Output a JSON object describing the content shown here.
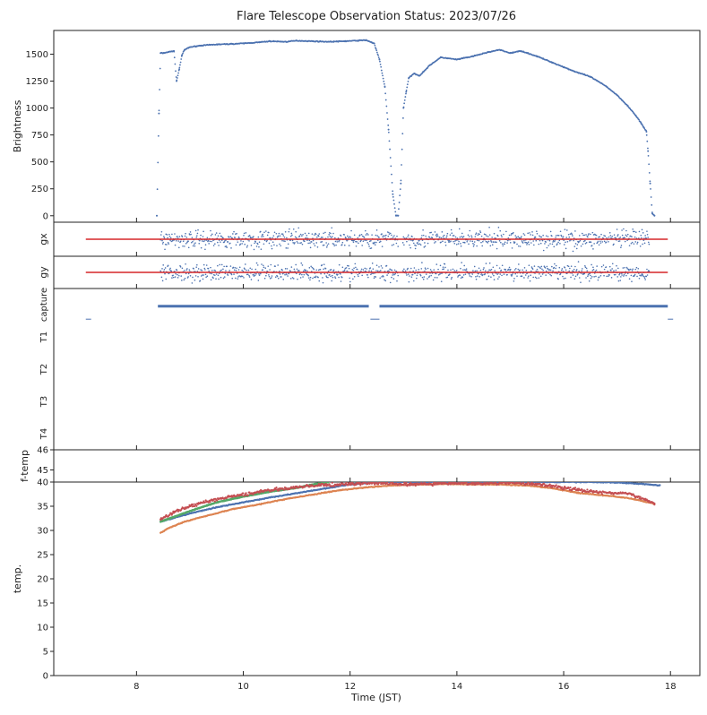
{
  "chart_data": {
    "type": "scatter",
    "title": "Flare Telescope Observation Status: 2023/07/26",
    "xlabel": "Time (JST)",
    "xlim": [
      6.45,
      18.55
    ],
    "xticks": [
      8,
      10,
      12,
      14,
      16,
      18
    ],
    "xtick_labels": [
      "8",
      "10",
      "12",
      "14",
      "16",
      "18"
    ],
    "colors": {
      "blue": "#4c72b0",
      "orange": "#dd8452",
      "green": "#55a868",
      "red": "#c44e52"
    },
    "panels": [
      {
        "name": "brightness",
        "ylabel": "Brightness",
        "ylim": [
          -60,
          1720
        ],
        "yticks": [
          0,
          250,
          500,
          750,
          1000,
          1250,
          1500
        ],
        "ytick_labels": [
          "0",
          "250",
          "500",
          "750",
          "1000",
          "1250",
          "1500"
        ],
        "series": [
          {
            "name": "brightness",
            "color": "#4c72b0",
            "x": [
              8.38,
              8.42,
              8.45,
              8.5,
              8.6,
              8.7,
              8.75,
              8.8,
              8.85,
              8.9,
              9.0,
              9.2,
              9.5,
              9.8,
              10.0,
              10.3,
              10.5,
              10.8,
              11.0,
              11.3,
              11.6,
              11.9,
              12.1,
              12.3,
              12.45,
              12.55,
              12.65,
              12.72,
              12.8,
              12.86,
              12.9,
              12.95,
              13.0,
              13.05,
              13.1,
              13.2,
              13.3,
              13.5,
              13.7,
              14.0,
              14.3,
              14.6,
              14.8,
              15.0,
              15.2,
              15.5,
              15.8,
              16.0,
              16.2,
              16.5,
              16.8,
              17.0,
              17.2,
              17.35,
              17.45,
              17.5,
              17.55,
              17.58,
              17.62,
              17.66,
              17.7
            ],
            "y": [
              0,
              950,
              1510,
              1510,
              1520,
              1530,
              1250,
              1360,
              1490,
              1540,
              1565,
              1580,
              1590,
              1595,
              1600,
              1610,
              1620,
              1615,
              1625,
              1620,
              1615,
              1620,
              1625,
              1630,
              1600,
              1450,
              1200,
              800,
              200,
              0,
              0,
              300,
              1000,
              1150,
              1280,
              1320,
              1300,
              1400,
              1470,
              1450,
              1480,
              1520,
              1540,
              1510,
              1530,
              1480,
              1420,
              1380,
              1340,
              1290,
              1200,
              1120,
              1020,
              930,
              860,
              820,
              780,
              600,
              300,
              20,
              0
            ]
          }
        ]
      },
      {
        "name": "gx",
        "ylabel": "gx",
        "ylim": [
          -1,
          1
        ],
        "yticks": [],
        "ytick_labels": [],
        "series": [
          {
            "name": "gx",
            "color": "#4c72b0",
            "x_range": [
              8.45,
              17.6
            ],
            "gap": [
              12.9,
              12.98
            ],
            "spread": 0.55
          },
          {
            "name": "gx-ref",
            "color": "#d62728",
            "x": [
              7.05,
              17.95
            ],
            "y": [
              0,
              0
            ]
          }
        ]
      },
      {
        "name": "gy",
        "ylabel": "gy",
        "ylim": [
          -1,
          1
        ],
        "yticks": [],
        "ytick_labels": [],
        "series": [
          {
            "name": "gy",
            "color": "#4c72b0",
            "x_range": [
              8.45,
              17.6
            ],
            "gap": [
              12.9,
              12.98
            ],
            "spread": 0.55
          },
          {
            "name": "gy-ref",
            "color": "#d62728",
            "x": [
              7.05,
              17.95
            ],
            "y": [
              0,
              0
            ]
          }
        ]
      },
      {
        "name": "status",
        "ylabel": "",
        "ylim": [
          5,
          0
        ],
        "yticks": [
          0.5,
          1.5,
          2.5,
          3.5,
          4.5
        ],
        "ytick_labels": [
          "capture",
          "T1",
          "T2",
          "T3",
          "T4"
        ],
        "series": [
          {
            "name": "capture",
            "color": "#4c72b0",
            "segments": [
              [
                7.05,
                7.15,
                0.95
              ],
              [
                8.4,
                12.35,
                0.55
              ],
              [
                12.38,
                12.55,
                0.95
              ],
              [
                12.55,
                17.95,
                0.55
              ],
              [
                17.95,
                18.05,
                0.95
              ]
            ]
          }
        ]
      },
      {
        "name": "f-temp",
        "ylabel": "f-temp",
        "ylim": [
          44.4,
          46
        ],
        "yticks": [
          45,
          46
        ],
        "ytick_labels": [
          "45",
          "46"
        ],
        "series": []
      },
      {
        "name": "temp",
        "ylabel": "temp.",
        "ylim": [
          0,
          40
        ],
        "yticks": [
          0,
          5,
          10,
          15,
          20,
          25,
          30,
          35,
          40
        ],
        "ytick_labels": [
          "0",
          "5",
          "10",
          "15",
          "20",
          "25",
          "30",
          "35",
          "40"
        ],
        "series": [
          {
            "name": "temp-1",
            "color": "#4c72b0",
            "x": [
              8.45,
              9.0,
              9.5,
              10.0,
              10.5,
              11.0,
              11.5,
              12.0,
              12.5,
              13.0,
              14.0,
              15.0,
              16.0,
              16.5,
              17.0,
              17.5,
              17.8
            ],
            "y": [
              31.8,
              33.5,
              34.8,
              35.8,
              36.8,
              37.7,
              38.6,
              39.5,
              40,
              40,
              40,
              40,
              40,
              40,
              39.9,
              39.6,
              39.3
            ]
          },
          {
            "name": "temp-2",
            "color": "#55a868",
            "x": [
              8.45,
              9.0,
              9.5,
              10.0,
              10.5,
              11.0,
              11.3,
              11.6
            ],
            "y": [
              31.8,
              34.0,
              35.8,
              37.0,
              38.0,
              38.8,
              39.5,
              40
            ]
          },
          {
            "name": "temp-3",
            "color": "#dd8452",
            "x": [
              8.45,
              8.6,
              8.9,
              9.3,
              9.8,
              10.3,
              10.8,
              11.3,
              11.8,
              12.3,
              12.8,
              13.3,
              13.8,
              14.3,
              14.8,
              15.3,
              15.8,
              16.3,
              16.8,
              17.2,
              17.5,
              17.7
            ],
            "y": [
              29.5,
              30.5,
              31.8,
              33.0,
              34.4,
              35.4,
              36.5,
              37.4,
              38.3,
              38.9,
              39.3,
              39.5,
              39.6,
              39.5,
              39.5,
              39.3,
              38.7,
              37.7,
              37.2,
              36.7,
              36.0,
              35.5
            ]
          },
          {
            "name": "temp-4",
            "color": "#c44e52",
            "x": [
              8.45,
              8.7,
              9.0,
              9.4,
              9.8,
              10.2,
              10.6,
              11.0,
              11.4,
              11.8,
              12.2,
              12.6,
              13.0,
              13.5,
              14.0,
              14.5,
              15.0,
              15.5,
              16.0,
              16.4,
              16.8,
              17.2,
              17.5,
              17.7
            ],
            "y": [
              32.2,
              33.8,
              35.0,
              36.2,
              37.0,
              37.8,
              38.5,
              38.9,
              39.3,
              39.5,
              39.7,
              39.8,
              39.5,
              39.6,
              39.8,
              39.7,
              39.8,
              39.6,
              38.8,
              38.2,
              37.8,
              37.6,
              36.5,
              35.6
            ]
          }
        ]
      }
    ]
  }
}
